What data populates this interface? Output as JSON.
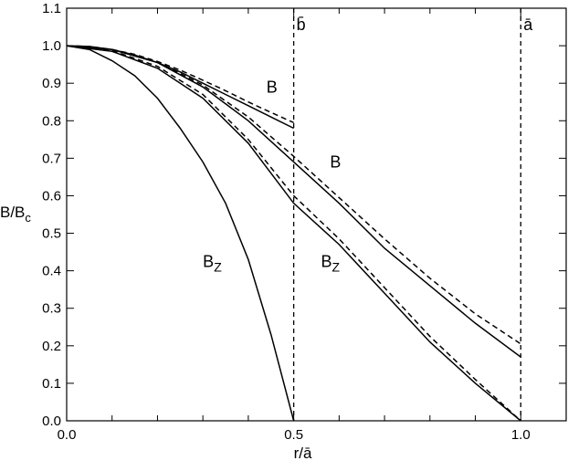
{
  "chart_data": {
    "type": "line",
    "xlabel": "r/ā",
    "ylabel": {
      "text": "B/B",
      "sub": "c"
    },
    "xlim": [
      0,
      1.1
    ],
    "ylim": [
      0,
      1.1
    ],
    "xticks": [
      {
        "value": 0,
        "label": "0.0"
      },
      0.5,
      {
        "value": 1,
        "label": "1.0"
      }
    ],
    "xminorticks": [
      0.1,
      0.2,
      0.3,
      0.4,
      0.6,
      0.7,
      0.8,
      0.9,
      1.1
    ],
    "yticks": [
      {
        "value": 0,
        "label": "0.0"
      },
      0.1,
      0.2,
      0.3,
      0.4,
      0.5,
      0.6,
      0.7,
      0.8,
      0.9,
      {
        "value": 1,
        "label": "1.0"
      },
      1.1
    ],
    "vlines": [
      {
        "x": 0.5,
        "label": "b̄"
      },
      {
        "x": 1,
        "label": "ā"
      }
    ],
    "series": [
      {
        "color": "#000",
        "dashed": false,
        "x": [
          0,
          0.05,
          0.1,
          0.15,
          0.2,
          0.25,
          0.3,
          0.35,
          0.4,
          0.45,
          0.5
        ],
        "values": [
          1,
          0.99,
          0.96,
          0.92,
          0.86,
          0.78,
          0.69,
          0.58,
          0.43,
          0.23,
          0
        ]
      },
      {
        "color": "#000",
        "dashed": false,
        "x": [
          0,
          0.05,
          0.1,
          0.15,
          0.2,
          0.25,
          0.3,
          0.35,
          0.4,
          0.45,
          0.5
        ],
        "values": [
          1,
          0.998,
          0.99,
          0.975,
          0.955,
          0.93,
          0.9,
          0.87,
          0.84,
          0.81,
          0.78
        ]
      },
      {
        "color": "#000",
        "dashed": true,
        "x": [
          0,
          0.05,
          0.1,
          0.15,
          0.2,
          0.25,
          0.3,
          0.35,
          0.4,
          0.45,
          0.5
        ],
        "values": [
          1,
          0.998,
          0.99,
          0.977,
          0.958,
          0.935,
          0.908,
          0.88,
          0.85,
          0.822,
          0.795
        ]
      },
      {
        "color": "#000",
        "dashed": false,
        "x": [
          0,
          0.1,
          0.2,
          0.3,
          0.4,
          0.5,
          0.6,
          0.7,
          0.8,
          0.9,
          1
        ],
        "values": [
          1,
          0.99,
          0.955,
          0.89,
          0.8,
          0.69,
          0.58,
          0.46,
          0.36,
          0.26,
          0.17
        ]
      },
      {
        "color": "#000",
        "dashed": true,
        "x": [
          0,
          0.1,
          0.2,
          0.3,
          0.4,
          0.5,
          0.6,
          0.7,
          0.8,
          0.9,
          1
        ],
        "values": [
          1,
          0.99,
          0.957,
          0.895,
          0.81,
          0.705,
          0.595,
          0.485,
          0.38,
          0.285,
          0.205
        ]
      },
      {
        "color": "#000",
        "dashed": false,
        "x": [
          0,
          0.1,
          0.2,
          0.3,
          0.4,
          0.5,
          0.6,
          0.7,
          0.8,
          0.9,
          1
        ],
        "values": [
          1,
          0.985,
          0.94,
          0.86,
          0.74,
          0.58,
          0.47,
          0.34,
          0.21,
          0.1,
          0
        ]
      },
      {
        "color": "#000",
        "dashed": true,
        "x": [
          0,
          0.1,
          0.2,
          0.3,
          0.4,
          0.5,
          0.6,
          0.7,
          0.8,
          0.9,
          1
        ],
        "values": [
          1,
          0.987,
          0.945,
          0.87,
          0.75,
          0.6,
          0.485,
          0.355,
          0.225,
          0.11,
          0
        ]
      }
    ],
    "annotations": [
      {
        "text": "B",
        "x": 0.44,
        "y": 0.875
      },
      {
        "text": "B",
        "x": 0.58,
        "y": 0.675
      },
      {
        "text": "B",
        "sub": "Z",
        "x": 0.3,
        "y": 0.41
      },
      {
        "text": "B",
        "sub": "Z",
        "x": 0.56,
        "y": 0.41
      }
    ]
  }
}
